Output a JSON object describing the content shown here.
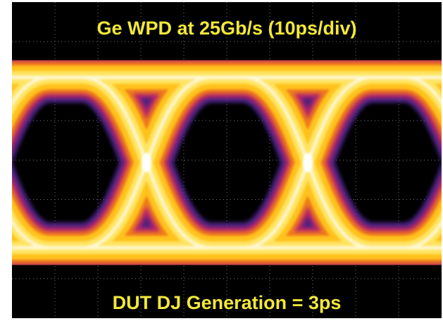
{
  "title": "Ge WPD at 25Gb/s (10ps/div)",
  "caption": "DUT DJ Generation = 3ps"
}
